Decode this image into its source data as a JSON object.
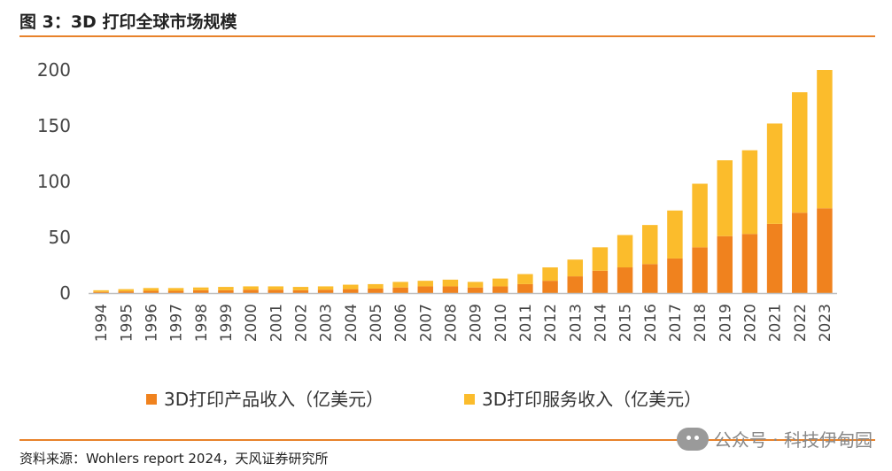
{
  "header": {
    "title": "图 3：3D 打印全球市场规模"
  },
  "footer": {
    "source": "资料来源：Wohlers report 2024，天风证券研究所",
    "watermark": "公众号 · 科技伊甸园",
    "watermark_icon": "wechat-icon"
  },
  "colors": {
    "product": "#f0821e",
    "service": "#fbbc2c",
    "accent_rule": "#e8822a"
  },
  "chart_data": {
    "type": "bar",
    "stacked": true,
    "title": "",
    "xlabel": "",
    "ylabel": "",
    "ylim": [
      0,
      200
    ],
    "yticks": [
      0,
      50,
      100,
      150,
      200
    ],
    "grid": false,
    "legend_position": "bottom",
    "categories": [
      "1994",
      "1995",
      "1996",
      "1997",
      "1998",
      "1999",
      "2000",
      "2001",
      "2002",
      "2003",
      "2004",
      "2005",
      "2006",
      "2007",
      "2008",
      "2009",
      "2010",
      "2011",
      "2012",
      "2013",
      "2014",
      "2015",
      "2016",
      "2017",
      "2018",
      "2019",
      "2020",
      "2021",
      "2022",
      "2023"
    ],
    "series": [
      {
        "name": "3D打印产品收入（亿美元）",
        "color": "#f0821e",
        "values": [
          1,
          1.5,
          2,
          2,
          2.5,
          2.5,
          3,
          3,
          2.5,
          3,
          3.5,
          4,
          5,
          6,
          6,
          5,
          6,
          8,
          11,
          15,
          20,
          23,
          26,
          31,
          41,
          51,
          53,
          62,
          72,
          76
        ]
      },
      {
        "name": "3D打印服务收入（亿美元）",
        "color": "#fbbc2c",
        "values": [
          1.5,
          2,
          2.5,
          2.5,
          2.5,
          3,
          3,
          3,
          3,
          3,
          4,
          4,
          5,
          5,
          6,
          5,
          7,
          9,
          12,
          15,
          21,
          29,
          35,
          43,
          57,
          68,
          75,
          90,
          108,
          124
        ]
      }
    ]
  }
}
